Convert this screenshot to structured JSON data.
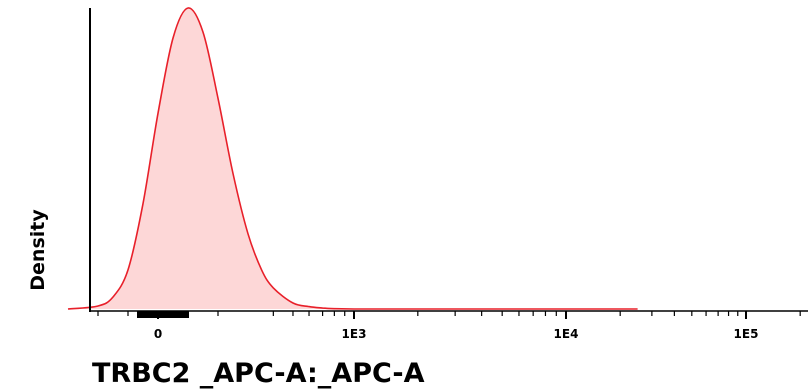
{
  "chart_data": {
    "type": "area",
    "title": "",
    "xlabel": "TRBC2 _APC-A:_APC-A",
    "ylabel": "Density",
    "x_scale": "biexponential",
    "x_ticks": [
      "0",
      "1E3",
      "1E4",
      "1E5"
    ],
    "grid": false,
    "legend": "none",
    "series": [
      {
        "color": "#e8202a",
        "fill": "#fdd7d7",
        "x": [
          -300,
          -200,
          -150,
          -100,
          -50,
          0,
          50,
          100,
          150,
          200,
          250,
          300,
          350,
          400,
          500,
          600,
          700,
          800,
          1000,
          1500,
          2000,
          5000,
          10000,
          20000,
          25000
        ],
        "y": [
          0,
          0.01,
          0.04,
          0.13,
          0.35,
          0.65,
          0.9,
          1.0,
          0.92,
          0.7,
          0.45,
          0.25,
          0.13,
          0.07,
          0.02,
          0.008,
          0.003,
          0.001,
          0,
          0,
          0,
          0,
          0,
          0,
          0
        ]
      }
    ]
  }
}
